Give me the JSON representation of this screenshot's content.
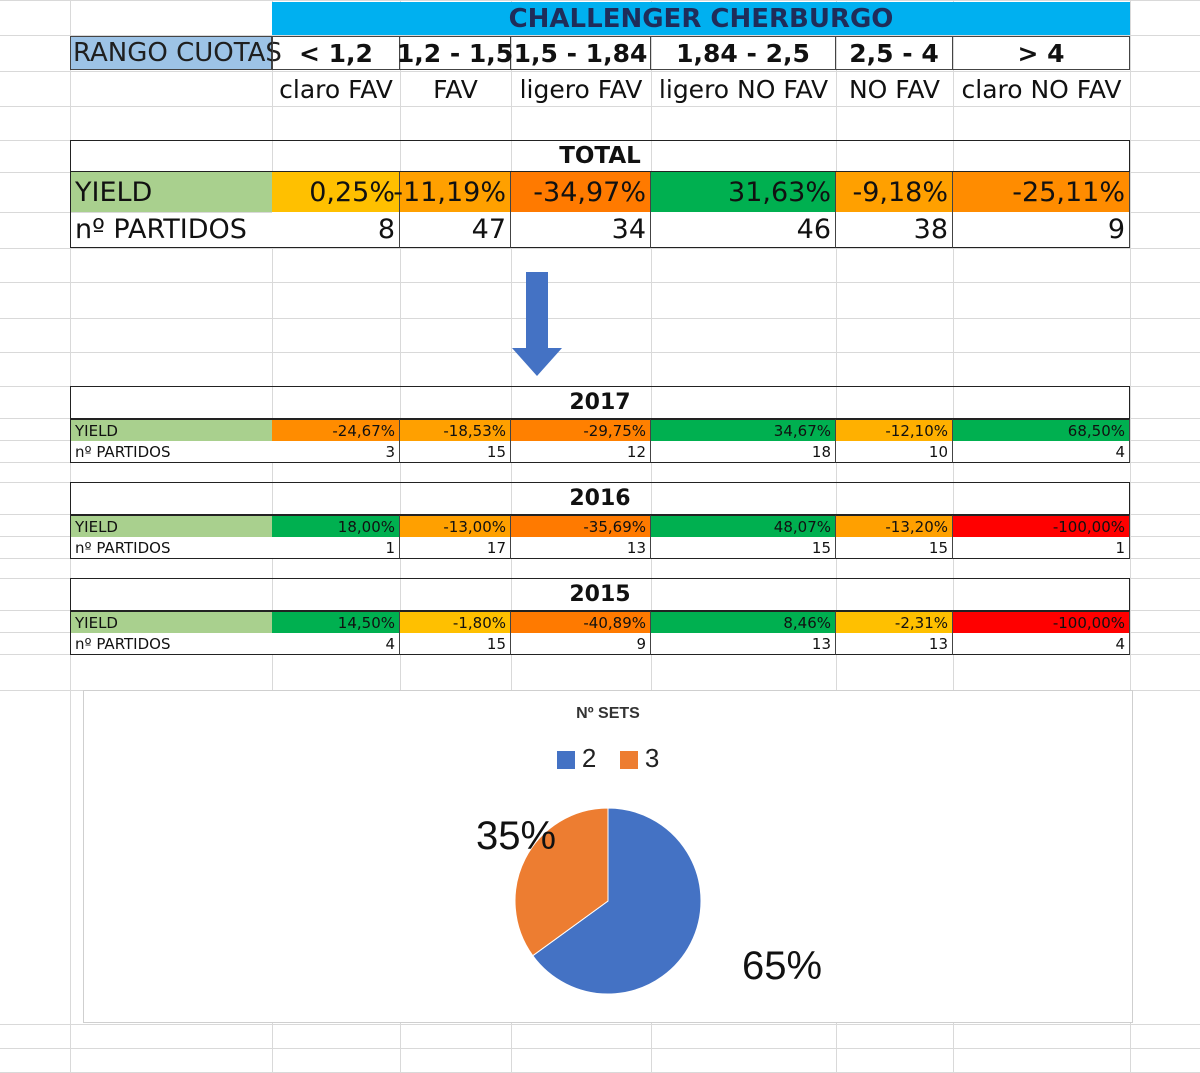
{
  "title": "CHALLENGER CHERBURGO",
  "rango_label": "RANGO CUOTAS",
  "ranges": [
    {
      "range": "< 1,2",
      "label": "claro FAV"
    },
    {
      "range": "1,2 - 1,5",
      "label": "FAV"
    },
    {
      "range": "1,5 - 1,84",
      "label": "ligero FAV"
    },
    {
      "range": "1,84 - 2,5",
      "label": "ligero NO FAV"
    },
    {
      "range": "2,5 - 4",
      "label": "NO FAV"
    },
    {
      "range": "> 4",
      "label": "claro NO FAV"
    }
  ],
  "row_labels": {
    "yield": "YIELD",
    "partidos": "nº PARTIDOS"
  },
  "total": {
    "title": "TOTAL",
    "yield": [
      "0,25%",
      "-11,19%",
      "-34,97%",
      "31,63%",
      "-9,18%",
      "-25,11%"
    ],
    "yield_colors": [
      "#ffc000",
      "#ffa000",
      "#ff7a00",
      "#00b050",
      "#ffa000",
      "#ff8c00"
    ],
    "partidos": [
      "8",
      "47",
      "34",
      "46",
      "38",
      "9"
    ]
  },
  "years": [
    {
      "title": "2017",
      "yield": [
        "-24,67%",
        "-18,53%",
        "-29,75%",
        "34,67%",
        "-12,10%",
        "68,50%"
      ],
      "yield_colors": [
        "#ff8c00",
        "#ffa000",
        "#ff8000",
        "#00b050",
        "#ffb000",
        "#00b050"
      ],
      "partidos": [
        "3",
        "15",
        "12",
        "18",
        "10",
        "4"
      ]
    },
    {
      "title": "2016",
      "yield": [
        "18,00%",
        "-13,00%",
        "-35,69%",
        "48,07%",
        "-13,20%",
        "-100,00%"
      ],
      "yield_colors": [
        "#00b050",
        "#ffa000",
        "#ff7a00",
        "#00b050",
        "#ffa000",
        "#ff0000"
      ],
      "partidos": [
        "1",
        "17",
        "13",
        "15",
        "15",
        "1"
      ]
    },
    {
      "title": "2015",
      "yield": [
        "14,50%",
        "-1,80%",
        "-40,89%",
        "8,46%",
        "-2,31%",
        "-100,00%"
      ],
      "yield_colors": [
        "#00b050",
        "#ffc000",
        "#ff7a00",
        "#00b050",
        "#ffc000",
        "#ff0000"
      ],
      "partidos": [
        "4",
        "15",
        "9",
        "13",
        "13",
        "4"
      ]
    }
  ],
  "chart_data": {
    "type": "pie",
    "title": "Nº SETS",
    "categories": [
      "2",
      "3"
    ],
    "values": [
      65,
      35
    ],
    "labels": [
      "65%",
      "35%"
    ],
    "colors": [
      "#4472c4",
      "#ed7d31"
    ],
    "legend_position": "top"
  }
}
